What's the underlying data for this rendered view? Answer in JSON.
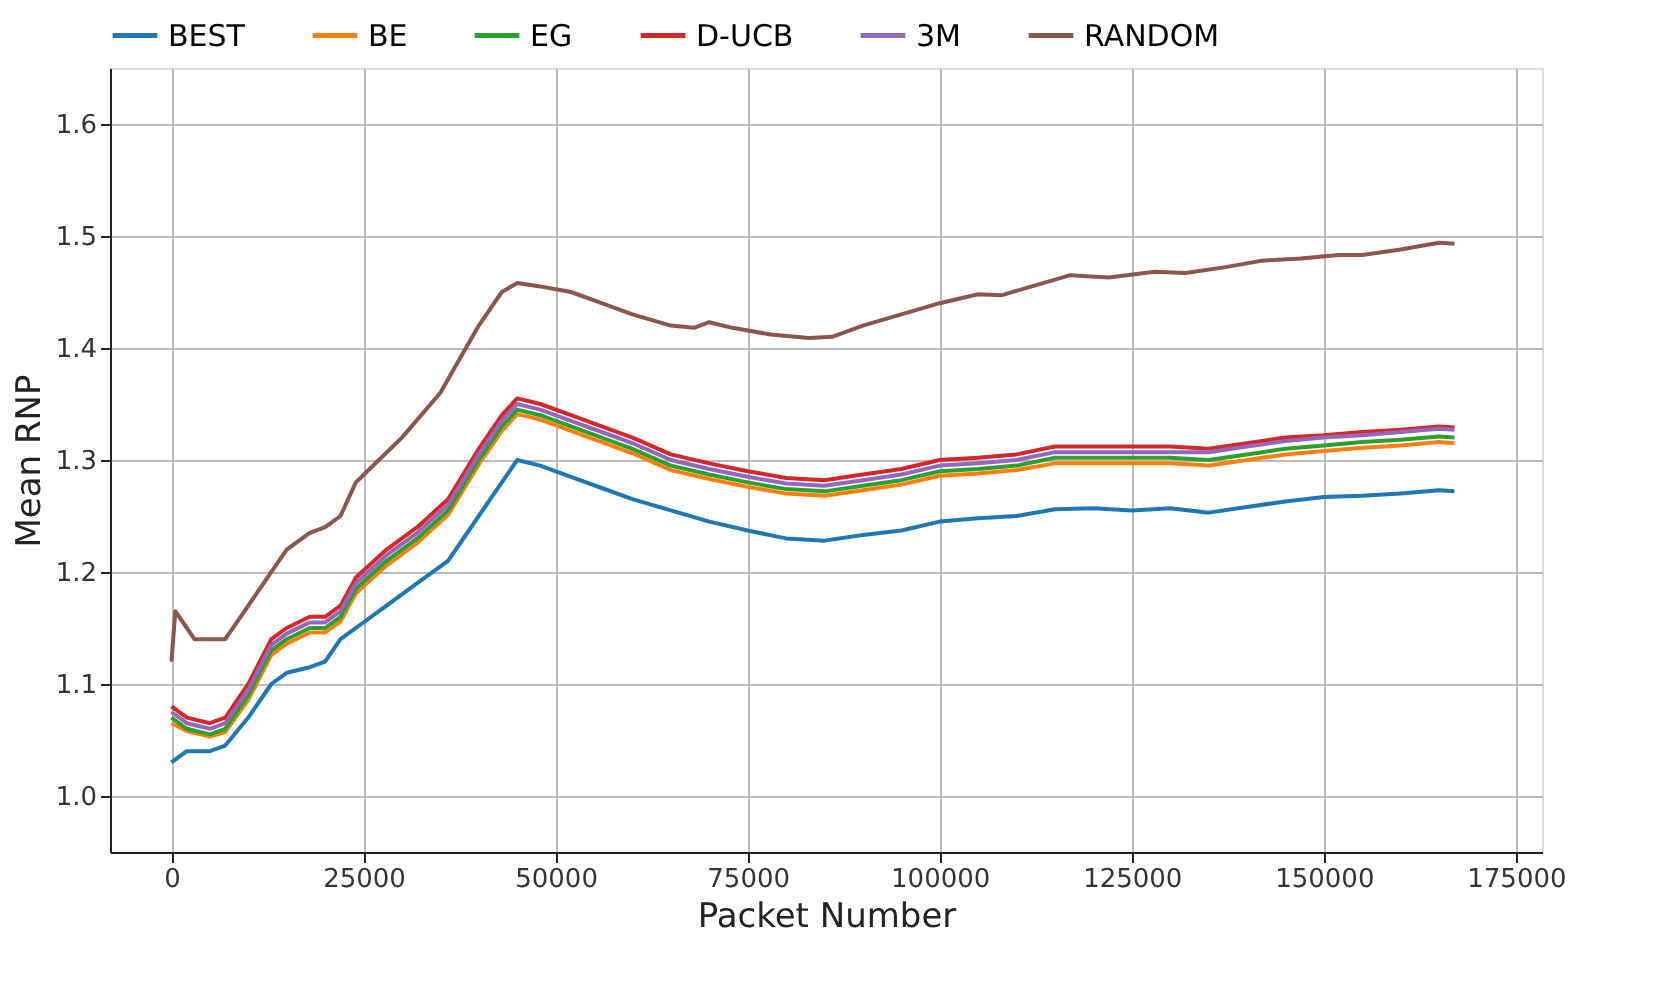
{
  "chart_data": {
    "type": "line",
    "xlabel": "Packet Number",
    "ylabel": "Mean RNP",
    "x": [
      0,
      2000,
      5000,
      7000,
      10000,
      13000,
      15000,
      18000,
      20000,
      22000,
      24000,
      28000,
      32000,
      36000,
      40000,
      43000,
      45000,
      48000,
      52000,
      56000,
      60000,
      65000,
      70000,
      75000,
      80000,
      85000,
      90000,
      95000,
      100000,
      105000,
      110000,
      115000,
      120000,
      125000,
      130000,
      135000,
      140000,
      145000,
      150000,
      155000,
      160000,
      165000,
      167000
    ],
    "series": [
      {
        "name": "BEST",
        "color": "#1f77b4",
        "values": [
          1.03,
          1.04,
          1.04,
          1.045,
          1.07,
          1.1,
          1.11,
          1.115,
          1.12,
          1.14,
          1.15,
          1.17,
          1.19,
          1.21,
          1.25,
          1.28,
          1.3,
          1.295,
          1.285,
          1.275,
          1.265,
          1.255,
          1.245,
          1.237,
          1.23,
          1.228,
          1.233,
          1.237,
          1.245,
          1.248,
          1.25,
          1.256,
          1.257,
          1.255,
          1.257,
          1.253,
          1.258,
          1.263,
          1.267,
          1.268,
          1.27,
          1.273,
          1.272
        ]
      },
      {
        "name": "BE",
        "color": "#ff7f0e",
        "values": [
          1.065,
          1.058,
          1.053,
          1.057,
          1.086,
          1.126,
          1.136,
          1.146,
          1.146,
          1.156,
          1.181,
          1.206,
          1.226,
          1.251,
          1.296,
          1.326,
          1.341,
          1.336,
          1.326,
          1.316,
          1.306,
          1.291,
          1.283,
          1.276,
          1.27,
          1.268,
          1.273,
          1.278,
          1.286,
          1.288,
          1.291,
          1.297,
          1.297,
          1.297,
          1.297,
          1.295,
          1.3,
          1.305,
          1.308,
          1.311,
          1.313,
          1.316,
          1.315
        ]
      },
      {
        "name": "EG",
        "color": "#2ca02c",
        "values": [
          1.07,
          1.06,
          1.055,
          1.06,
          1.09,
          1.13,
          1.14,
          1.15,
          1.15,
          1.16,
          1.185,
          1.21,
          1.23,
          1.255,
          1.3,
          1.33,
          1.345,
          1.34,
          1.33,
          1.32,
          1.31,
          1.295,
          1.287,
          1.28,
          1.274,
          1.272,
          1.277,
          1.282,
          1.29,
          1.292,
          1.295,
          1.302,
          1.302,
          1.302,
          1.302,
          1.3,
          1.305,
          1.31,
          1.313,
          1.316,
          1.318,
          1.321,
          1.32
        ]
      },
      {
        "name": "D-UCB",
        "color": "#d62728",
        "values": [
          1.08,
          1.07,
          1.065,
          1.07,
          1.1,
          1.14,
          1.15,
          1.16,
          1.16,
          1.17,
          1.195,
          1.22,
          1.24,
          1.265,
          1.31,
          1.34,
          1.355,
          1.35,
          1.34,
          1.33,
          1.32,
          1.305,
          1.297,
          1.29,
          1.284,
          1.282,
          1.287,
          1.292,
          1.3,
          1.302,
          1.305,
          1.312,
          1.312,
          1.312,
          1.312,
          1.31,
          1.315,
          1.32,
          1.322,
          1.325,
          1.327,
          1.33,
          1.329
        ]
      },
      {
        "name": "3M",
        "color": "#9467bd",
        "values": [
          1.075,
          1.065,
          1.06,
          1.065,
          1.095,
          1.135,
          1.145,
          1.155,
          1.155,
          1.165,
          1.19,
          1.215,
          1.235,
          1.26,
          1.305,
          1.335,
          1.35,
          1.345,
          1.335,
          1.325,
          1.315,
          1.3,
          1.292,
          1.285,
          1.279,
          1.277,
          1.282,
          1.287,
          1.295,
          1.297,
          1.3,
          1.307,
          1.307,
          1.307,
          1.307,
          1.307,
          1.312,
          1.317,
          1.32,
          1.322,
          1.325,
          1.328,
          1.327
        ]
      },
      {
        "name": "RANDOM",
        "color": "#8c564b",
        "x": [
          0,
          500,
          2000,
          3000,
          5000,
          7000,
          10000,
          12000,
          15000,
          18000,
          20000,
          22000,
          24000,
          27000,
          30000,
          35000,
          40000,
          43000,
          45000,
          48000,
          52000,
          56000,
          60000,
          65000,
          68000,
          70000,
          73000,
          78000,
          83000,
          86000,
          90000,
          95000,
          100000,
          105000,
          108000,
          112000,
          117000,
          122000,
          128000,
          132000,
          137000,
          142000,
          147000,
          152000,
          155000,
          160000,
          165000,
          167000
        ],
        "values": [
          1.12,
          1.165,
          1.15,
          1.14,
          1.14,
          1.14,
          1.17,
          1.19,
          1.22,
          1.235,
          1.24,
          1.25,
          1.28,
          1.3,
          1.32,
          1.36,
          1.42,
          1.45,
          1.458,
          1.455,
          1.45,
          1.44,
          1.43,
          1.42,
          1.418,
          1.423,
          1.418,
          1.412,
          1.409,
          1.41,
          1.42,
          1.43,
          1.44,
          1.448,
          1.447,
          1.455,
          1.465,
          1.463,
          1.468,
          1.467,
          1.472,
          1.478,
          1.48,
          1.483,
          1.483,
          1.488,
          1.494,
          1.493
        ]
      }
    ],
    "xlim": [
      -8000,
      178400
    ],
    "xticks": [
      0,
      25000,
      50000,
      75000,
      100000,
      125000,
      150000,
      175000
    ],
    "ylim": [
      0.95,
      1.65
    ],
    "yticks": [
      {
        "value": 1.0,
        "label": "1.0"
      },
      {
        "value": 1.1,
        "label": "1.1"
      },
      {
        "value": 1.2,
        "label": "1.2"
      },
      {
        "value": 1.3,
        "label": "1.3"
      },
      {
        "value": 1.4,
        "label": "1.4"
      },
      {
        "value": 1.5,
        "label": "1.5"
      },
      {
        "value": 1.6,
        "label": "1.6"
      }
    ],
    "grid": true,
    "legend": "top",
    "line_style": "solid",
    "marker": "none"
  }
}
